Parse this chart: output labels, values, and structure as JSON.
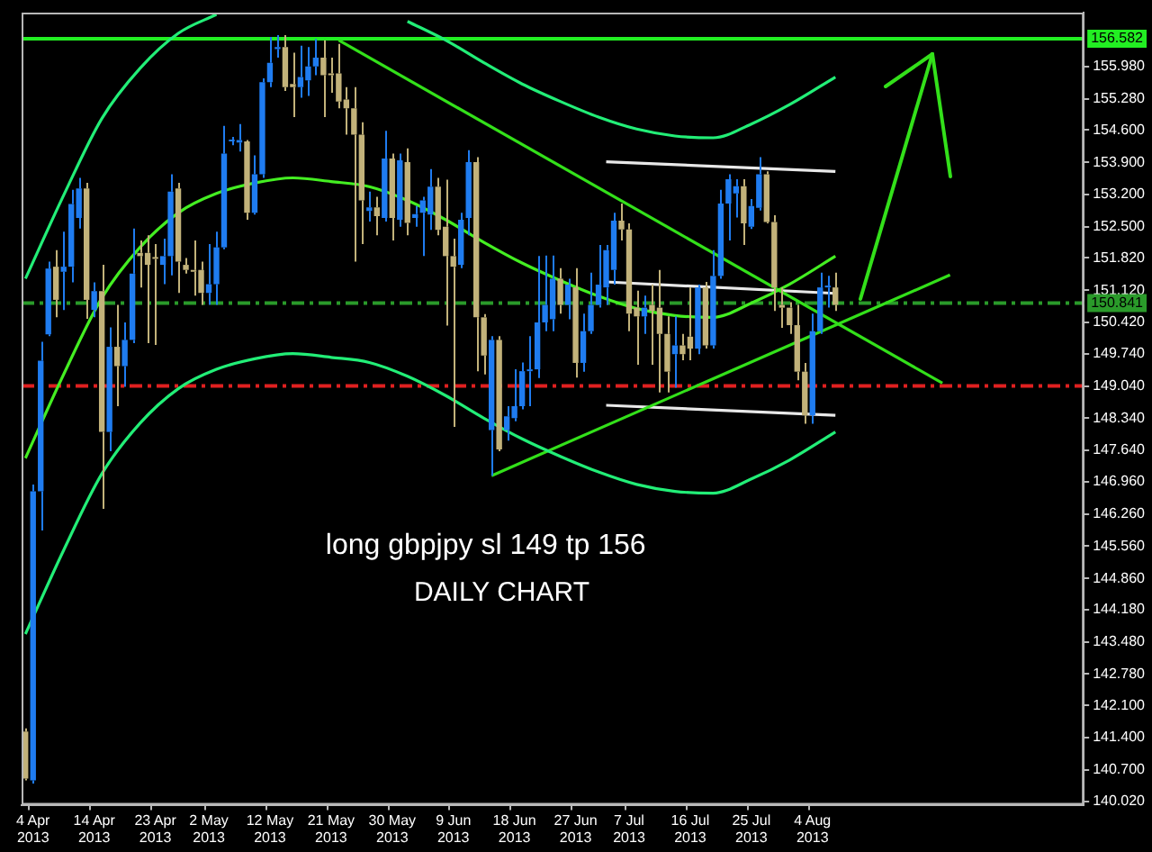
{
  "chart_data": {
    "type": "candlestick",
    "categories": [
      null,
      "4 Apr 2013",
      null,
      null,
      null,
      null,
      null,
      null,
      null,
      "14 Apr 2013",
      null,
      null,
      null,
      null,
      null,
      null,
      null,
      "23 Apr 2013",
      null,
      null,
      null,
      null,
      null,
      null,
      "2 May 2013",
      null,
      null,
      null,
      null,
      null,
      null,
      null,
      "12 May 2013",
      null,
      null,
      null,
      null,
      null,
      null,
      null,
      "21 May 2013",
      null,
      null,
      null,
      null,
      null,
      null,
      null,
      "30 May 2013",
      null,
      null,
      null,
      null,
      null,
      null,
      null,
      "9 Jun 2013",
      null,
      null,
      null,
      null,
      null,
      null,
      null,
      "18 Jun 2013",
      null,
      null,
      null,
      null,
      null,
      null,
      null,
      "27 Jun 2013",
      null,
      null,
      null,
      null,
      null,
      null,
      "7 Jul 2013",
      null,
      null,
      null,
      null,
      null,
      null,
      null,
      "16 Jul 2013",
      null,
      null,
      null,
      null,
      null,
      null,
      null,
      "25 Jul 2013",
      null,
      null,
      null,
      null,
      null,
      null,
      null,
      "4 Aug 2013",
      null,
      null,
      null,
      null,
      null,
      null,
      null,
      null,
      null,
      null,
      null,
      null,
      null,
      null,
      null,
      null,
      null,
      null,
      null,
      null,
      null,
      null,
      null,
      null,
      null,
      null,
      null,
      null,
      null,
      null,
      null,
      null,
      null,
      null,
      null
    ],
    "ohlc": [
      [
        141.53,
        141.6,
        140.47,
        140.51
      ],
      [
        140.47,
        146.9,
        140.4,
        146.75
      ],
      [
        146.75,
        150.0,
        145.9,
        149.59
      ],
      [
        150.16,
        151.74,
        150.12,
        151.59
      ],
      [
        151.63,
        151.99,
        150.53,
        150.91
      ],
      [
        151.52,
        152.39,
        150.69,
        151.63
      ],
      [
        151.63,
        153.3,
        151.29,
        152.99
      ],
      [
        152.69,
        153.56,
        152.46,
        153.33
      ],
      [
        153.33,
        153.45,
        150.5,
        150.91
      ],
      [
        150.69,
        151.29,
        150.53,
        151.1
      ],
      [
        151.1,
        151.67,
        146.37,
        148.04
      ],
      [
        148.04,
        150.31,
        147.62,
        149.89
      ],
      [
        149.89,
        150.8,
        148.6,
        149.47
      ],
      [
        149.47,
        150.42,
        149.02,
        150.04
      ],
      [
        150.04,
        152.46,
        149.97,
        151.48
      ],
      [
        151.93,
        152.2,
        151.18,
        151.86
      ],
      [
        151.93,
        152.31,
        149.97,
        151.67
      ],
      [
        151.82,
        152.12,
        149.93,
        151.8
      ],
      [
        151.67,
        152.24,
        151.25,
        151.86
      ],
      [
        151.86,
        153.64,
        151.44,
        153.26
      ],
      [
        153.33,
        153.45,
        151.06,
        151.74
      ],
      [
        151.67,
        151.82,
        151.48,
        151.56
      ],
      [
        151.56,
        152.2,
        151.0,
        151.52
      ],
      [
        151.56,
        151.74,
        150.8,
        151.06
      ],
      [
        151.06,
        152.12,
        150.8,
        151.25
      ],
      [
        151.25,
        152.39,
        150.8,
        152.05
      ],
      [
        152.05,
        154.69,
        152.01,
        154.09
      ],
      [
        154.35,
        154.45,
        154.27,
        154.38
      ],
      [
        154.33,
        154.73,
        154.13,
        154.38
      ],
      [
        154.35,
        154.38,
        152.65,
        152.8
      ],
      [
        152.8,
        154.05,
        152.76,
        153.64
      ],
      [
        153.64,
        155.72,
        153.56,
        155.64
      ],
      [
        155.64,
        156.62,
        155.53,
        156.06
      ],
      [
        156.36,
        156.66,
        156.17,
        156.4
      ],
      [
        156.4,
        156.66,
        155.45,
        155.53
      ],
      [
        155.6,
        156.28,
        154.88,
        155.53
      ],
      [
        155.53,
        156.43,
        155.3,
        155.75
      ],
      [
        155.68,
        156.4,
        155.34,
        155.98
      ],
      [
        155.98,
        156.58,
        155.79,
        156.17
      ],
      [
        156.17,
        156.55,
        154.88,
        155.79
      ],
      [
        155.83,
        156.17,
        155.41,
        155.79
      ],
      [
        155.83,
        156.47,
        155.07,
        155.22
      ],
      [
        155.26,
        155.53,
        154.5,
        155.07
      ],
      [
        155.07,
        155.53,
        151.74,
        154.5
      ],
      [
        154.5,
        154.77,
        152.12,
        153.07
      ],
      [
        152.84,
        153.26,
        152.61,
        152.92
      ],
      [
        152.92,
        153.15,
        152.31,
        152.73
      ],
      [
        152.69,
        154.58,
        152.61,
        153.98
      ],
      [
        153.98,
        154.09,
        152.2,
        152.69
      ],
      [
        152.65,
        154.09,
        152.5,
        153.94
      ],
      [
        153.9,
        154.2,
        152.31,
        152.58
      ],
      [
        152.69,
        152.95,
        152.5,
        152.77
      ],
      [
        152.8,
        153.15,
        151.86,
        153.07
      ],
      [
        152.76,
        153.75,
        152.43,
        153.37
      ],
      [
        153.37,
        153.56,
        152.31,
        152.43
      ],
      [
        152.5,
        153.52,
        150.35,
        151.86
      ],
      [
        151.86,
        152.24,
        148.15,
        151.63
      ],
      [
        151.67,
        152.8,
        151.6,
        152.65
      ],
      [
        152.69,
        154.16,
        152.31,
        153.9
      ],
      [
        153.9,
        154.01,
        149.36,
        150.53
      ],
      [
        150.53,
        150.6,
        149.29,
        149.7
      ],
      [
        148.08,
        150.12,
        147.09,
        150.04
      ],
      [
        150.04,
        150.12,
        147.62,
        147.66
      ],
      [
        148.08,
        148.6,
        147.85,
        148.38
      ],
      [
        148.34,
        149.4,
        148.27,
        148.6
      ],
      [
        148.6,
        149.55,
        148.53,
        149.36
      ],
      [
        149.36,
        150.12,
        148.6,
        149.4
      ],
      [
        149.4,
        151.86,
        149.21,
        150.42
      ],
      [
        150.42,
        151.87,
        150.23,
        150.8
      ],
      [
        150.49,
        151.87,
        150.23,
        151.37
      ],
      [
        151.37,
        151.6,
        150.61,
        150.8
      ],
      [
        150.8,
        151.37,
        150.49,
        151.24
      ],
      [
        151.18,
        151.6,
        149.22,
        149.54
      ],
      [
        149.54,
        150.61,
        149.35,
        150.23
      ],
      [
        150.23,
        151.5,
        150.17,
        150.8
      ],
      [
        150.8,
        152.1,
        150.74,
        151.24
      ],
      [
        151.18,
        152.1,
        150.8,
        151.99
      ],
      [
        151.56,
        152.8,
        151.24,
        152.63
      ],
      [
        152.63,
        153.0,
        152.2,
        152.44
      ],
      [
        152.44,
        152.57,
        150.23,
        150.61
      ],
      [
        150.74,
        151.11,
        149.5,
        150.55
      ],
      [
        150.55,
        151.0,
        150.17,
        150.74
      ],
      [
        150.8,
        151.24,
        149.5,
        150.67
      ],
      [
        150.74,
        151.56,
        148.9,
        150.17
      ],
      [
        150.17,
        150.55,
        148.9,
        149.35
      ],
      [
        149.73,
        150.55,
        149.0,
        149.92
      ],
      [
        149.92,
        150.17,
        149.6,
        149.73
      ],
      [
        150.11,
        151.18,
        149.6,
        149.85
      ],
      [
        149.85,
        151.24,
        149.73,
        151.18
      ],
      [
        151.18,
        151.3,
        149.85,
        149.92
      ],
      [
        149.92,
        151.99,
        149.85,
        151.43
      ],
      [
        151.43,
        153.3,
        151.37,
        153.0
      ],
      [
        153.0,
        153.64,
        152.2,
        153.53
      ],
      [
        153.22,
        153.53,
        152.7,
        153.38
      ],
      [
        153.38,
        153.53,
        152.1,
        152.57
      ],
      [
        152.5,
        153.1,
        152.45,
        152.95
      ],
      [
        152.91,
        154.01,
        152.85,
        153.64
      ],
      [
        153.64,
        153.7,
        152.57,
        152.6
      ],
      [
        152.6,
        152.75,
        150.67,
        151.18
      ],
      [
        150.8,
        151.18,
        150.3,
        150.74
      ],
      [
        150.74,
        150.86,
        150.17,
        150.36
      ],
      [
        150.36,
        150.8,
        149.16,
        149.35
      ],
      [
        149.35,
        149.54,
        148.22,
        148.4
      ],
      [
        148.4,
        150.61,
        148.22,
        150.23
      ],
      [
        150.23,
        151.5,
        150.17,
        151.18
      ],
      [
        151.18,
        151.43,
        150.74,
        151.22
      ],
      [
        151.18,
        151.5,
        150.67,
        150.8
      ],
      null,
      null,
      null,
      null,
      null,
      null,
      null,
      null,
      null,
      null,
      null,
      null,
      null,
      null,
      null,
      null,
      null,
      null,
      null,
      null,
      null,
      null,
      null,
      null,
      null,
      null,
      null,
      null,
      null,
      null,
      null,
      null
    ],
    "colors": [
      "#c2b27a",
      "#1f7cf0",
      "#1f7cf0",
      "#1f7cf0",
      "#c2b27a",
      "#1f7cf0",
      "#1f7cf0",
      "#1f7cf0",
      "#c2b27a",
      "#1f7cf0",
      "#c2b27a",
      "#1f7cf0",
      "#c2b27a",
      "#1f7cf0",
      "#1f7cf0",
      "#c2b27a",
      "#c2b27a",
      "#c2b27a",
      "#1f7cf0",
      "#1f7cf0",
      "#c2b27a",
      "#c2b27a",
      "#c2b27a",
      "#c2b27a",
      "#1f7cf0",
      "#1f7cf0",
      "#1f7cf0",
      "#1f7cf0",
      "#1f7cf0",
      "#c2b27a",
      "#1f7cf0",
      "#1f7cf0",
      "#1f7cf0",
      "#1f7cf0",
      "#c2b27a",
      "#c2b27a",
      "#1f7cf0",
      "#1f7cf0",
      "#1f7cf0",
      "#c2b27a",
      "#c2b27a",
      "#c2b27a",
      "#c2b27a",
      "#c2b27a",
      "#c2b27a",
      "#1f7cf0",
      "#c2b27a",
      "#1f7cf0",
      "#c2b27a",
      "#1f7cf0",
      "#c2b27a",
      "#1f7cf0",
      "#1f7cf0",
      "#1f7cf0",
      "#c2b27a",
      "#c2b27a",
      "#c2b27a",
      "#1f7cf0",
      "#1f7cf0",
      "#c2b27a",
      "#c2b27a",
      "#1f7cf0",
      "#c2b27a",
      "#1f7cf0",
      "#1f7cf0",
      "#1f7cf0",
      "#1f7cf0",
      "#1f7cf0",
      "#1f7cf0",
      "#1f7cf0",
      "#c2b27a",
      "#1f7cf0",
      "#c2b27a",
      "#1f7cf0",
      "#1f7cf0",
      "#1f7cf0",
      "#1f7cf0",
      "#1f7cf0",
      "#c2b27a",
      "#c2b27a",
      "#c2b27a",
      "#1f7cf0",
      "#c2b27a",
      "#c2b27a",
      "#c2b27a",
      "#1f7cf0",
      "#c2b27a",
      "#c2b27a",
      "#1f7cf0",
      "#c2b27a",
      "#1f7cf0",
      "#1f7cf0",
      "#1f7cf0",
      "#1f7cf0",
      "#c2b27a",
      "#1f7cf0",
      "#1f7cf0",
      "#c2b27a",
      "#c2b27a",
      "#c2b27a",
      "#c2b27a",
      "#c2b27a",
      "#c2b27a",
      "#1f7cf0",
      "#1f7cf0",
      "#1f7cf0",
      "#c2b27a",
      null,
      null,
      null,
      null,
      null,
      null,
      null,
      null,
      null,
      null,
      null,
      null,
      null,
      null,
      null,
      null,
      null,
      null,
      null,
      null,
      null,
      null,
      null,
      null,
      null,
      null,
      null,
      null,
      null,
      null,
      null,
      null
    ],
    "series": [
      {
        "type": "line",
        "color": "#22ee77",
        "values": [
          151.37,
          null,
          null,
          null,
          null,
          153.18,
          null,
          null,
          null,
          null,
          154.85,
          null,
          null,
          null,
          null,
          155.94,
          null,
          null,
          null,
          null,
          156.7,
          null,
          null,
          null,
          null,
          157.11,
          null,
          null,
          null,
          null,
          null,
          null,
          null,
          null,
          null,
          null,
          null,
          null,
          null,
          null,
          null,
          null,
          null,
          null,
          null,
          null,
          null,
          null,
          null,
          null,
          null,
          null,
          null,
          null,
          null,
          null,
          null,
          null,
          null,
          null,
          null,
          null,
          null,
          null,
          null,
          null,
          null,
          null,
          null,
          null,
          null,
          null,
          null,
          null,
          null,
          null,
          null,
          null,
          null,
          null,
          null,
          null,
          null,
          null,
          null,
          null,
          null,
          null,
          null,
          null,
          null,
          null,
          null,
          null,
          null,
          null,
          null,
          null,
          null,
          null,
          null,
          null,
          null,
          null,
          null,
          null,
          null,
          null,
          null,
          null,
          null,
          null,
          null,
          null,
          null,
          null,
          null,
          null,
          null,
          null,
          null,
          null,
          null,
          null,
          null,
          null,
          null,
          null,
          null,
          null,
          null,
          null,
          null,
          null,
          null,
          null,
          null,
          null,
          null
        ]
      },
      {
        "type": "line",
        "color": "#22ee77",
        "values": [
          null,
          null,
          null,
          null,
          null,
          null,
          null,
          null,
          null,
          null,
          null,
          null,
          null,
          null,
          null,
          null,
          null,
          null,
          null,
          null,
          null,
          null,
          null,
          null,
          null,
          null,
          null,
          null,
          null,
          null,
          null,
          null,
          null,
          null,
          null,
          null,
          null,
          null,
          null,
          null,
          null,
          null,
          null,
          null,
          null,
          null,
          null,
          null,
          null,
          null,
          156.96,
          null,
          null,
          null,
          null,
          156.55,
          null,
          null,
          null,
          null,
          156.06,
          null,
          null,
          null,
          null,
          155.6,
          null,
          null,
          null,
          null,
          155.22,
          null,
          null,
          null,
          null,
          154.88,
          null,
          null,
          null,
          null,
          154.62,
          null,
          null,
          null,
          null,
          154.47,
          null,
          null,
          null,
          null,
          154.43,
          null,
          null,
          null,
          null,
          154.73,
          null,
          null,
          null,
          null,
          155.15,
          null,
          null,
          null,
          null,
          null,
          155.75,
          null,
          null,
          null,
          null,
          null,
          null,
          null,
          null,
          null,
          null,
          null,
          null,
          null,
          null,
          null,
          null,
          null,
          null,
          null,
          null,
          null,
          null,
          null,
          null,
          null,
          null,
          null,
          null,
          null,
          null,
          null,
          null
        ]
      },
      {
        "type": "line",
        "color": "#44ee22",
        "values": [
          147.47,
          null,
          null,
          null,
          null,
          149.29,
          null,
          null,
          null,
          null,
          150.95,
          null,
          null,
          null,
          null,
          152.05,
          null,
          null,
          null,
          null,
          152.8,
          null,
          null,
          null,
          null,
          153.22,
          null,
          null,
          null,
          null,
          153.45,
          null,
          null,
          null,
          null,
          153.56,
          null,
          null,
          null,
          null,
          153.48,
          null,
          null,
          null,
          null,
          153.37,
          null,
          null,
          null,
          null,
          153.07,
          null,
          null,
          null,
          null,
          152.65,
          null,
          null,
          null,
          null,
          152.16,
          null,
          null,
          null,
          null,
          151.71,
          null,
          null,
          null,
          null,
          151.33,
          null,
          null,
          null,
          null,
          150.99,
          null,
          null,
          null,
          null,
          150.72,
          null,
          null,
          null,
          null,
          150.57,
          null,
          null,
          null,
          null,
          150.53,
          null,
          null,
          null,
          null,
          150.84,
          null,
          null,
          null,
          null,
          151.25,
          null,
          null,
          null,
          null,
          null,
          151.86,
          null,
          null,
          null,
          null,
          null,
          null,
          null,
          null,
          null,
          null,
          null,
          null,
          null,
          null,
          null,
          null,
          null,
          null,
          null,
          null,
          null,
          null,
          null,
          null,
          null,
          null,
          null,
          null,
          null,
          null,
          null,
          null
        ]
      },
      {
        "type": "line",
        "color": "#22ee77",
        "values": [
          143.65,
          null,
          null,
          null,
          null,
          145.47,
          null,
          null,
          null,
          null,
          147.13,
          null,
          null,
          null,
          null,
          148.23,
          null,
          null,
          null,
          null,
          148.98,
          null,
          null,
          null,
          null,
          149.4,
          null,
          null,
          null,
          null,
          149.63,
          null,
          null,
          null,
          null,
          149.74,
          null,
          null,
          null,
          null,
          149.66,
          null,
          null,
          null,
          null,
          149.55,
          null,
          null,
          null,
          null,
          149.25,
          null,
          null,
          null,
          null,
          148.83,
          null,
          null,
          null,
          null,
          148.34,
          null,
          null,
          null,
          null,
          147.89,
          null,
          null,
          null,
          null,
          147.51,
          null,
          null,
          null,
          null,
          147.17,
          null,
          null,
          null,
          null,
          146.9,
          null,
          null,
          null,
          null,
          146.75,
          null,
          null,
          null,
          null,
          146.71,
          null,
          null,
          null,
          null,
          147.02,
          null,
          null,
          null,
          null,
          147.43,
          null,
          null,
          null,
          null,
          null,
          148.04,
          null,
          null,
          null,
          null,
          null,
          null,
          null,
          null,
          null,
          null,
          null,
          null,
          null,
          null,
          null,
          null,
          null,
          null,
          null,
          null,
          null,
          null,
          null,
          null,
          null,
          null,
          null,
          null,
          null,
          null,
          null,
          null
        ]
      },
      {
        "type": "line",
        "color": "#33e01a",
        "values": [
          null,
          null,
          null,
          null,
          null,
          null,
          null,
          null,
          null,
          null,
          null,
          null,
          null,
          null,
          null,
          null,
          null,
          null,
          null,
          null,
          null,
          null,
          null,
          null,
          null,
          null,
          null,
          null,
          null,
          null,
          null,
          null,
          null,
          null,
          null,
          null,
          null,
          null,
          null,
          null,
          null,
          156.55,
          null,
          null,
          null,
          null,
          null,
          null,
          null,
          null,
          null,
          null,
          null,
          null,
          null,
          null,
          null,
          null,
          null,
          null,
          null,
          null,
          null,
          null,
          null,
          null,
          null,
          null,
          null,
          null,
          null,
          null,
          null,
          null,
          null,
          null,
          null,
          null,
          null,
          null,
          null,
          null,
          null,
          null,
          null,
          null,
          null,
          null,
          null,
          null,
          null,
          null,
          null,
          null,
          null,
          null,
          null,
          null,
          null,
          null,
          null,
          null,
          null,
          null,
          null,
          null,
          null,
          null,
          null,
          null,
          null,
          null,
          null,
          null,
          null,
          null,
          null,
          null,
          null,
          null,
          149.1,
          null,
          null,
          null,
          null,
          null,
          null,
          null,
          null,
          null,
          null,
          null,
          null,
          null,
          null,
          null,
          null,
          null,
          null
        ]
      },
      {
        "type": "line",
        "color": "#33e01a",
        "values": [
          null,
          null,
          null,
          null,
          null,
          null,
          null,
          null,
          null,
          null,
          null,
          null,
          null,
          null,
          null,
          null,
          null,
          null,
          null,
          null,
          null,
          null,
          null,
          null,
          null,
          null,
          null,
          null,
          null,
          null,
          null,
          null,
          null,
          null,
          null,
          null,
          null,
          null,
          null,
          null,
          null,
          null,
          null,
          null,
          null,
          null,
          null,
          null,
          null,
          null,
          null,
          null,
          null,
          null,
          null,
          null,
          null,
          null,
          null,
          null,
          null,
          147.09,
          null,
          null,
          null,
          null,
          null,
          null,
          null,
          null,
          null,
          null,
          null,
          null,
          null,
          null,
          null,
          null,
          null,
          null,
          null,
          null,
          null,
          null,
          null,
          null,
          null,
          null,
          null,
          null,
          null,
          null,
          null,
          null,
          null,
          null,
          null,
          null,
          null,
          null,
          null,
          null,
          null,
          null,
          null,
          null,
          null,
          null,
          null,
          null,
          null,
          null,
          null,
          null,
          null,
          null,
          null,
          null,
          null,
          null,
          null,
          151.45,
          null,
          null,
          null,
          null,
          null,
          null,
          null,
          null,
          null,
          null,
          null,
          null,
          null,
          null,
          null,
          null,
          null
        ]
      },
      {
        "type": "line",
        "color": "#e8e8e8",
        "values": [
          null,
          null,
          null,
          null,
          null,
          null,
          null,
          null,
          null,
          null,
          null,
          null,
          null,
          null,
          null,
          null,
          null,
          null,
          null,
          null,
          null,
          null,
          null,
          null,
          null,
          null,
          null,
          null,
          null,
          null,
          null,
          null,
          null,
          null,
          null,
          null,
          null,
          null,
          null,
          null,
          null,
          null,
          null,
          null,
          null,
          null,
          null,
          null,
          null,
          null,
          null,
          null,
          null,
          null,
          null,
          null,
          null,
          null,
          null,
          null,
          null,
          null,
          null,
          null,
          null,
          null,
          null,
          null,
          null,
          null,
          null,
          null,
          null,
          null,
          null,
          null,
          153.91,
          null,
          null,
          null,
          null,
          null,
          null,
          null,
          null,
          null,
          null,
          null,
          null,
          null,
          null,
          null,
          null,
          null,
          null,
          null,
          null,
          null,
          null,
          null,
          null,
          null,
          null,
          null,
          null,
          null,
          153.7,
          null,
          null,
          null,
          null,
          null,
          null,
          null,
          null,
          null,
          null,
          null,
          null,
          null,
          null,
          null,
          null,
          null,
          null,
          null,
          null,
          null,
          null,
          null,
          null,
          null,
          null,
          null,
          null,
          null,
          null,
          null,
          null
        ]
      },
      {
        "type": "line",
        "color": "#e8e8e8",
        "values": [
          null,
          null,
          null,
          null,
          null,
          null,
          null,
          null,
          null,
          null,
          null,
          null,
          null,
          null,
          null,
          null,
          null,
          null,
          null,
          null,
          null,
          null,
          null,
          null,
          null,
          null,
          null,
          null,
          null,
          null,
          null,
          null,
          null,
          null,
          null,
          null,
          null,
          null,
          null,
          null,
          null,
          null,
          null,
          null,
          null,
          null,
          null,
          null,
          null,
          null,
          null,
          null,
          null,
          null,
          null,
          null,
          null,
          null,
          null,
          null,
          null,
          null,
          null,
          null,
          null,
          null,
          null,
          null,
          null,
          null,
          null,
          null,
          null,
          null,
          null,
          null,
          151.3,
          null,
          null,
          null,
          null,
          null,
          null,
          null,
          null,
          null,
          null,
          null,
          null,
          null,
          null,
          null,
          null,
          null,
          null,
          null,
          null,
          null,
          null,
          null,
          null,
          null,
          null,
          null,
          null,
          null,
          151.05,
          null,
          null,
          null,
          null,
          null,
          null,
          null,
          null,
          null,
          null,
          null,
          null,
          null,
          null,
          null,
          null,
          null,
          null,
          null,
          null,
          null,
          null,
          null,
          null,
          null,
          null,
          null,
          null,
          null,
          null,
          null,
          null
        ]
      },
      {
        "type": "line",
        "color": "#e8e8e8",
        "values": [
          null,
          null,
          null,
          null,
          null,
          null,
          null,
          null,
          null,
          null,
          null,
          null,
          null,
          null,
          null,
          null,
          null,
          null,
          null,
          null,
          null,
          null,
          null,
          null,
          null,
          null,
          null,
          null,
          null,
          null,
          null,
          null,
          null,
          null,
          null,
          null,
          null,
          null,
          null,
          null,
          null,
          null,
          null,
          null,
          null,
          null,
          null,
          null,
          null,
          null,
          null,
          null,
          null,
          null,
          null,
          null,
          null,
          null,
          null,
          null,
          null,
          null,
          null,
          null,
          null,
          null,
          null,
          null,
          null,
          null,
          null,
          null,
          null,
          null,
          null,
          null,
          148.62,
          null,
          null,
          null,
          null,
          null,
          null,
          null,
          null,
          null,
          null,
          null,
          null,
          null,
          null,
          null,
          null,
          null,
          null,
          null,
          null,
          null,
          null,
          null,
          null,
          null,
          null,
          null,
          null,
          null,
          148.4,
          null,
          null,
          null,
          null,
          null,
          null,
          null,
          null,
          null,
          null,
          null,
          null,
          null,
          null,
          null,
          null,
          null,
          null,
          null,
          null,
          null,
          null,
          null,
          null,
          null,
          null,
          null,
          null,
          null,
          null,
          null,
          null
        ]
      }
    ],
    "ylim": [
      139.94,
      157.15
    ],
    "yticks": [
      {
        "value": 155.98,
        "label": "155.980"
      },
      {
        "value": 155.28,
        "label": "155.280"
      },
      {
        "value": 154.6,
        "label": "154.600"
      },
      {
        "value": 153.9,
        "label": "153.900"
      },
      {
        "value": 153.2,
        "label": "153.200"
      },
      {
        "value": 152.5,
        "label": "152.500"
      },
      {
        "value": 151.82,
        "label": "151.820"
      },
      {
        "value": 151.12,
        "label": "151.120"
      },
      {
        "value": 150.42,
        "label": "150.420"
      },
      {
        "value": 149.74,
        "label": "149.740"
      },
      {
        "value": 149.04,
        "label": "149.040"
      },
      {
        "value": 148.34,
        "label": "148.340"
      },
      {
        "value": 147.64,
        "label": "147.640"
      },
      {
        "value": 146.96,
        "label": "146.960"
      },
      {
        "value": 146.26,
        "label": "146.260"
      },
      {
        "value": 145.56,
        "label": "145.560"
      },
      {
        "value": 144.86,
        "label": "144.860"
      },
      {
        "value": 144.18,
        "label": "144.180"
      },
      {
        "value": 143.48,
        "label": "143.480"
      },
      {
        "value": 142.78,
        "label": "142.780"
      },
      {
        "value": 142.1,
        "label": "142.100"
      },
      {
        "value": 141.4,
        "label": "141.400"
      },
      {
        "value": 140.7,
        "label": "140.700"
      },
      {
        "value": 140.02,
        "label": "140.020"
      }
    ],
    "ref_lines": [
      {
        "axis": "y",
        "value": 156.582,
        "label": "156.582",
        "color": "#22ee22",
        "line_style": "solid"
      },
      {
        "axis": "y",
        "value": 150.841,
        "label": "150.841",
        "color": "#2a9a2a",
        "line_style": "dashed"
      },
      {
        "axis": "y",
        "value": 149.04,
        "color": "#e02020",
        "line_style": "dashed"
      }
    ],
    "annotations": [
      "long gbpjpy sl 149 tp 156",
      "DAILY CHART"
    ]
  }
}
